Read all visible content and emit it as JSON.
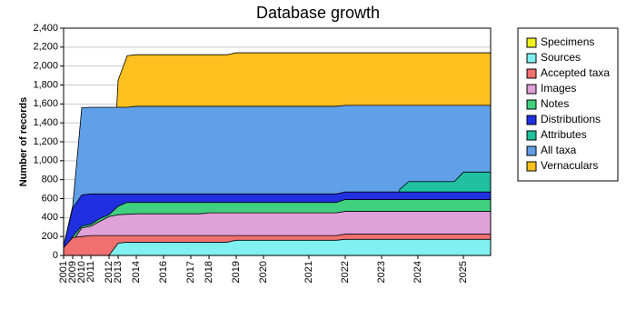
{
  "chart_data": {
    "type": "area",
    "title": "Database growth",
    "y_label": "Number of records",
    "categories": [
      "2001",
      "2009",
      "2010",
      "2011",
      null,
      "2012",
      "2013",
      null,
      "2014",
      null,
      null,
      "2016",
      null,
      null,
      "2017",
      null,
      "2018",
      null,
      null,
      "2019",
      null,
      null,
      "2020",
      null,
      null,
      null,
      null,
      "2021",
      null,
      null,
      null,
      "2022",
      null,
      null,
      null,
      "2023",
      null,
      null,
      null,
      "2024",
      null,
      null,
      null,
      null,
      "2025",
      null,
      null,
      null
    ],
    "ylim": [
      0,
      2400
    ],
    "yticks": [
      0,
      200,
      400,
      600,
      800,
      {
        "value": 1000,
        "label": "1,000"
      },
      {
        "value": 1200,
        "label": "1,200"
      },
      {
        "value": 1400,
        "label": "1,400"
      },
      {
        "value": 1600,
        "label": "1,600"
      },
      {
        "value": 1800,
        "label": "1,800"
      },
      {
        "value": 2000,
        "label": "2,000"
      },
      {
        "value": 2200,
        "label": "2,200"
      },
      {
        "value": 2400,
        "label": "2,400"
      }
    ],
    "grid": true,
    "legend": "right",
    "series": [
      {
        "name": "Specimens",
        "color": "#f0f020",
        "values": [
          0,
          0,
          0,
          0,
          0,
          0,
          0,
          0,
          0,
          0,
          0,
          0,
          0,
          0,
          0,
          0,
          0,
          0,
          0,
          0,
          0,
          0,
          0,
          0,
          0,
          0,
          0,
          0,
          0,
          0,
          0,
          0,
          0,
          0,
          0,
          0,
          0,
          0,
          0,
          0,
          0,
          0,
          0,
          0,
          0,
          0,
          0,
          0
        ]
      },
      {
        "name": "Sources",
        "color": "#80f0f0",
        "values": [
          0,
          0,
          0,
          0,
          0,
          0,
          130,
          140,
          140,
          140,
          140,
          140,
          140,
          140,
          140,
          140,
          140,
          140,
          140,
          160,
          160,
          160,
          160,
          160,
          160,
          160,
          160,
          160,
          160,
          160,
          160,
          170,
          170,
          170,
          170,
          170,
          170,
          170,
          170,
          170,
          170,
          170,
          170,
          170,
          170,
          170,
          170,
          170
        ]
      },
      {
        "name": "Accepted taxa",
        "color": "#f07070",
        "values": [
          80,
          190,
          200,
          210,
          210,
          210,
          210,
          210,
          210,
          210,
          210,
          210,
          210,
          210,
          210,
          210,
          210,
          210,
          210,
          210,
          210,
          210,
          210,
          210,
          210,
          210,
          210,
          210,
          210,
          210,
          210,
          225,
          225,
          225,
          225,
          225,
          225,
          225,
          225,
          225,
          225,
          225,
          225,
          225,
          225,
          225,
          225,
          225
        ]
      },
      {
        "name": "Images",
        "color": "#e0a0d8",
        "values": [
          20,
          150,
          290,
          310,
          360,
          410,
          430,
          435,
          440,
          440,
          440,
          440,
          440,
          440,
          440,
          440,
          450,
          450,
          450,
          450,
          450,
          450,
          450,
          450,
          450,
          450,
          450,
          450,
          450,
          450,
          450,
          465,
          465,
          465,
          465,
          465,
          465,
          465,
          465,
          465,
          465,
          465,
          465,
          465,
          465,
          465,
          465,
          465
        ]
      },
      {
        "name": "Notes",
        "color": "#40d080",
        "values": [
          40,
          200,
          310,
          330,
          390,
          430,
          520,
          560,
          560,
          560,
          560,
          560,
          560,
          560,
          560,
          560,
          560,
          560,
          560,
          560,
          560,
          560,
          560,
          560,
          560,
          560,
          560,
          560,
          560,
          560,
          560,
          590,
          590,
          590,
          590,
          590,
          590,
          590,
          590,
          590,
          590,
          590,
          590,
          590,
          590,
          590,
          590,
          590
        ]
      },
      {
        "name": "Distributions",
        "color": "#2030e0",
        "values": [
          100,
          500,
          640,
          650,
          650,
          650,
          650,
          650,
          650,
          650,
          650,
          650,
          650,
          650,
          650,
          650,
          650,
          650,
          650,
          650,
          650,
          650,
          650,
          650,
          650,
          650,
          650,
          650,
          650,
          650,
          650,
          670,
          670,
          670,
          670,
          670,
          670,
          670,
          670,
          670,
          670,
          670,
          670,
          670,
          670,
          670,
          670,
          670
        ]
      },
      {
        "name": "Attributes",
        "color": "#20c0a0",
        "values": [
          0,
          0,
          0,
          0,
          0,
          0,
          0,
          0,
          0,
          0,
          0,
          0,
          0,
          0,
          0,
          0,
          0,
          0,
          0,
          0,
          0,
          0,
          0,
          0,
          0,
          0,
          0,
          0,
          0,
          0,
          0,
          0,
          0,
          0,
          0,
          0,
          0,
          700,
          780,
          780,
          780,
          780,
          780,
          780,
          880,
          880,
          880,
          880
        ]
      },
      {
        "name": "All taxa",
        "color": "#60a0e8",
        "values": [
          100,
          520,
          1560,
          1565,
          1565,
          1565,
          1565,
          1565,
          1575,
          1575,
          1575,
          1575,
          1575,
          1575,
          1575,
          1575,
          1575,
          1575,
          1575,
          1575,
          1575,
          1575,
          1575,
          1575,
          1575,
          1575,
          1575,
          1575,
          1575,
          1575,
          1575,
          1585,
          1585,
          1585,
          1585,
          1585,
          1585,
          1585,
          1585,
          1585,
          1585,
          1585,
          1585,
          1585,
          1585,
          1585,
          1585,
          1585
        ]
      },
      {
        "name": "Vernaculars",
        "color": "#ffc020",
        "values": [
          0,
          0,
          0,
          0,
          0,
          0,
          1850,
          2110,
          2120,
          2120,
          2120,
          2120,
          2120,
          2120,
          2120,
          2120,
          2120,
          2120,
          2120,
          2140,
          2140,
          2140,
          2140,
          2140,
          2140,
          2140,
          2140,
          2140,
          2140,
          2140,
          2140,
          2140,
          2140,
          2140,
          2140,
          2140,
          2140,
          2140,
          2140,
          2140,
          2140,
          2140,
          2140,
          2140,
          2140,
          2140,
          2140,
          2140
        ]
      }
    ]
  }
}
